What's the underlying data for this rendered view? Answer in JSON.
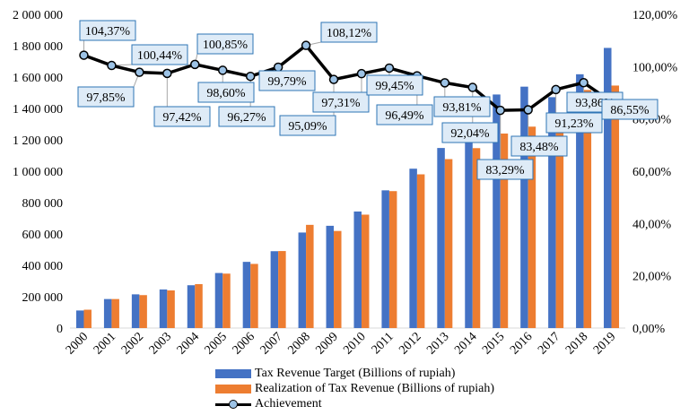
{
  "chart_data": {
    "type": "bar+line",
    "categories": [
      "2000",
      "2001",
      "2002",
      "2003",
      "2004",
      "2005",
      "2006",
      "2007",
      "2008",
      "2009",
      "2010",
      "2011",
      "2012",
      "2013",
      "2014",
      "2015",
      "2016",
      "2017",
      "2018",
      "2019"
    ],
    "series": [
      {
        "name": "Tax Revenue Target (Billions of rupiah)",
        "axis": "left",
        "type": "bar",
        "color": "#4472c4",
        "values": [
          112000,
          185000,
          215000,
          246000,
          273000,
          351000,
          422000,
          490000,
          609000,
          652000,
          743000,
          878000,
          1016000,
          1148000,
          1246000,
          1489000,
          1539000,
          1472000,
          1618000,
          1786000
        ]
      },
      {
        "name": "Realization of Tax Revenue (Billions of rupiah)",
        "axis": "left",
        "type": "bar",
        "color": "#ed7d31",
        "values": [
          117000,
          185000,
          210000,
          240000,
          280000,
          347000,
          409000,
          491000,
          658000,
          619000,
          723000,
          873000,
          980000,
          1077000,
          1147000,
          1240000,
          1284000,
          1343000,
          1518000,
          1546000
        ]
      },
      {
        "name": "Achievement",
        "axis": "right",
        "type": "line",
        "color": "#000000",
        "marker_color": "#9dc3e6",
        "values": [
          104.37,
          100.44,
          97.85,
          97.42,
          100.85,
          98.6,
          96.27,
          99.79,
          108.12,
          95.09,
          97.31,
          99.45,
          96.49,
          93.81,
          92.04,
          83.29,
          83.48,
          91.23,
          93.86,
          86.55
        ],
        "labels": [
          "104,37%",
          "100,44%",
          "97,85%",
          "97,42%",
          "100,85%",
          "98,60%",
          "96,27%",
          "99,79%",
          "108,12%",
          "95,09%",
          "97,31%",
          "99,45%",
          "96,49%",
          "93,81%",
          "92,04%",
          "83,29%",
          "83,48%",
          "91,23%",
          "93,86%",
          "86,55%"
        ]
      }
    ],
    "left_axis": {
      "min": 0,
      "max": 2000000,
      "step": 200000,
      "tick_labels": [
        "0",
        "200 000",
        "400 000",
        "600 000",
        "800 000",
        "1 000 000",
        "1 200 000",
        "1 400 000",
        "1 600 000",
        "1 800 000",
        "2 000 000"
      ]
    },
    "right_axis": {
      "min": 0,
      "max": 120,
      "step": 20,
      "tick_labels": [
        "0,00%",
        "20,00%",
        "40,00%",
        "60,00%",
        "80,00%",
        "100,00%",
        "120,00%"
      ]
    },
    "legend_position": "bottom",
    "legend": [
      "Tax Revenue Target (Billions of rupiah)",
      "Realization of Tax Revenue (Billions of rupiah)",
      "Achievement"
    ]
  }
}
